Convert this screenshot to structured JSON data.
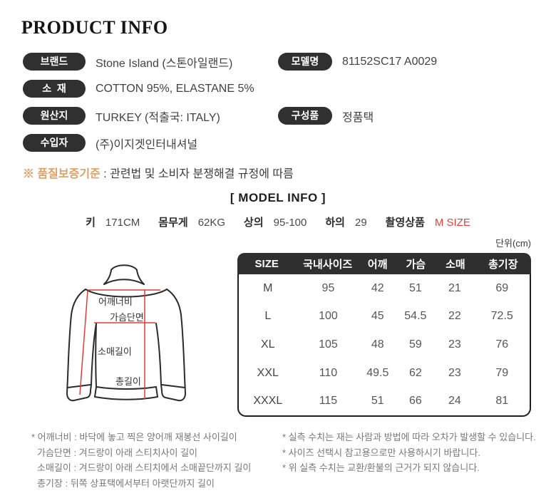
{
  "page": {
    "title": "PRODUCT INFO"
  },
  "info": {
    "rows": [
      {
        "label": "브랜드",
        "value": "Stone Island (스톤아일랜드)"
      },
      {
        "label": "모델명",
        "value": "81152SC17 A0029"
      },
      {
        "label": "소  재",
        "value": "COTTON 95%, ELASTANE 5%"
      },
      {
        "label": "원산지",
        "value": "TURKEY (적출국: ITALY)"
      },
      {
        "label": "구성품",
        "value": "정품택"
      },
      {
        "label": "수입자",
        "value": "(주)이지겟인터내셔널"
      }
    ],
    "quality_label": "※ 품질보증기준",
    "quality_value": " : 관련법 및 소비자 분쟁해결 규정에 따름"
  },
  "model_info": {
    "heading": "[ MODEL INFO ]",
    "stats": [
      {
        "label": "키",
        "value": "171CM",
        "highlight": false
      },
      {
        "label": "몸무게",
        "value": "62KG",
        "highlight": false
      },
      {
        "label": "상의",
        "value": "95-100",
        "highlight": false
      },
      {
        "label": "하의",
        "value": "29",
        "highlight": false
      },
      {
        "label": "촬영상품",
        "value": "M SIZE",
        "highlight": true
      }
    ]
  },
  "size_chart": {
    "unit_note": "단위(cm)",
    "columns": [
      "SIZE",
      "국내사이즈",
      "어깨",
      "가슴",
      "소매",
      "총기장"
    ],
    "rows": [
      [
        "M",
        "95",
        "42",
        "51",
        "21",
        "69"
      ],
      [
        "L",
        "100",
        "45",
        "54.5",
        "22",
        "72.5"
      ],
      [
        "XL",
        "105",
        "48",
        "59",
        "23",
        "76"
      ],
      [
        "XXL",
        "110",
        "49.5",
        "62",
        "23",
        "79"
      ],
      [
        "XXXL",
        "115",
        "51",
        "66",
        "24",
        "81"
      ]
    ]
  },
  "diagram": {
    "labels": {
      "shoulder": "어깨너비",
      "chest": "가슴단면",
      "sleeve": "소매길이",
      "length": "총길이"
    },
    "line_color": "#e03b3b",
    "outline_color": "#2b2b2b"
  },
  "footnotes": {
    "left": [
      "* 어깨너비 : 바닥에 놓고 찍은 양어깨 재봉선 사이길이",
      "가슴단면 : 겨드랑이 아래 스티치사이 길이",
      "소매길이 : 겨드랑이 아래 스티치에서 소매끝단까지 길이",
      "총기장 : 뒤쪽 상표택에서부터 아랫단까지 길이"
    ],
    "right": [
      "* 실측 수치는 재는 사람과 방법에 따라 오차가 발생할 수 있습니다.",
      "* 사이즈 선택시 참고용으로만 사용하시기 바랍니다.",
      "* 위 실측 수치는 교환/환불의 근거가 되지 않습니다."
    ]
  },
  "colors": {
    "badge_bg": "#303030",
    "table_header_bg": "#2f2f2f",
    "quality_highlight": "#dfa064",
    "size_highlight_red": "#e9413c",
    "diagram_red": "#e03b3b"
  }
}
